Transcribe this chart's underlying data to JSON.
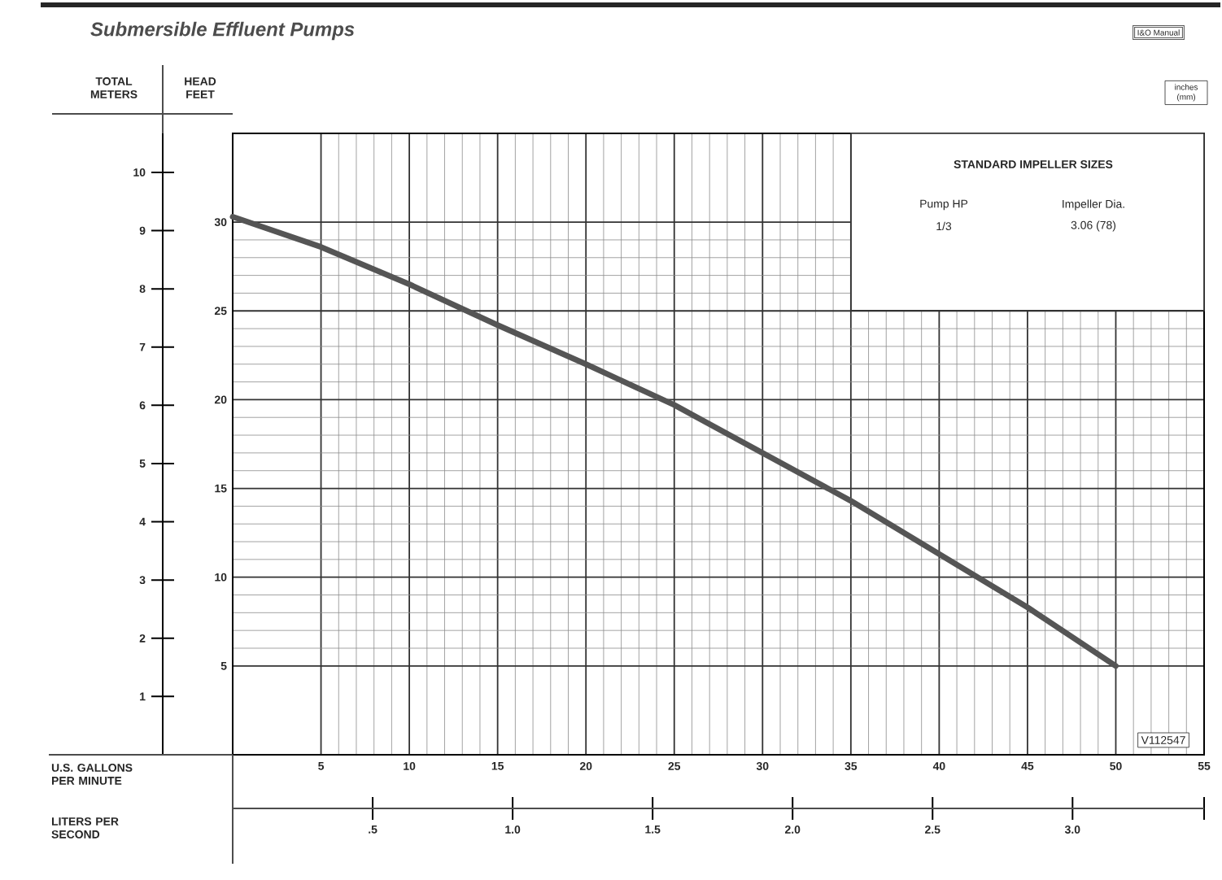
{
  "chart_data": {
    "type": "line",
    "title": "Submersible Effluent Pumps",
    "xlabel": "U.S. GALLONS PER MINUTE",
    "ylabel": "HEAD FEET",
    "y2label": "TOTAL METERS",
    "x2label": "LITERS PER SECOND",
    "x": [
      0,
      5,
      10,
      15,
      20,
      25,
      30,
      35,
      40,
      45,
      50
    ],
    "series": [
      {
        "color": "#555555",
        "values": [
          30.3,
          28.6,
          26.5,
          24.2,
          22.0,
          19.7,
          17.0,
          14.3,
          11.3,
          8.3,
          5.0
        ]
      }
    ],
    "xlim": [
      0,
      55
    ],
    "xticks": [
      5,
      10,
      15,
      20,
      25,
      30,
      35,
      40,
      45,
      50,
      55
    ],
    "ylim": [
      0,
      35
    ],
    "yticks": [
      5,
      10,
      15,
      20,
      25,
      30
    ],
    "y2lim": [
      0,
      10.67
    ],
    "y2ticks": [
      1,
      2,
      3,
      4,
      5,
      6,
      7,
      8,
      9,
      10
    ],
    "x2lim": [
      0,
      3.47
    ],
    "x2ticks": [
      {
        "value": 0.5,
        "label": ".5"
      },
      {
        "value": 1,
        "label": "1.0"
      },
      1.5,
      {
        "value": 2,
        "label": "2.0"
      },
      2.5,
      {
        "value": 3,
        "label": "3.0"
      },
      {
        "value": 3.47,
        "label": null
      }
    ],
    "grid": true,
    "annotations": [
      "I&O Manual",
      "inches (mm)",
      "STANDARD IMPELLER SIZES",
      "Pump HP",
      "1/3",
      "Impeller Dia.",
      "3.06 (78)",
      "V112547"
    ]
  }
}
